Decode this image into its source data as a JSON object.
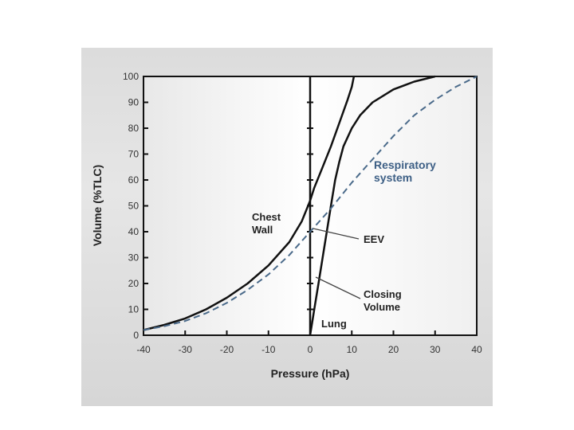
{
  "chart_data": {
    "type": "line",
    "xlabel": "Pressure (hPa)",
    "ylabel": "Volume (%TLC)",
    "xlim": [
      -40,
      40
    ],
    "ylim": [
      0,
      100
    ],
    "xticks": [
      -40,
      -30,
      -20,
      -10,
      0,
      10,
      20,
      30,
      40
    ],
    "yticks": [
      0,
      10,
      20,
      30,
      40,
      50,
      60,
      70,
      80,
      90,
      100
    ],
    "grid": false,
    "series": [
      {
        "name": "Chest Wall",
        "color": "#111111",
        "style": "solid",
        "points": [
          [
            -40,
            2
          ],
          [
            -35,
            4
          ],
          [
            -30,
            6.5
          ],
          [
            -25,
            10
          ],
          [
            -20,
            14.5
          ],
          [
            -15,
            20
          ],
          [
            -10,
            27
          ],
          [
            -5,
            36
          ],
          [
            -2,
            44
          ],
          [
            0,
            52
          ],
          [
            1,
            57
          ],
          [
            3,
            65
          ],
          [
            5,
            73
          ],
          [
            7,
            82
          ],
          [
            9,
            91
          ],
          [
            10,
            96
          ],
          [
            10.5,
            100
          ]
        ]
      },
      {
        "name": "Lung",
        "color": "#111111",
        "style": "solid",
        "points": [
          [
            0,
            0
          ],
          [
            1,
            10
          ],
          [
            2,
            20
          ],
          [
            3,
            30
          ],
          [
            4,
            40
          ],
          [
            5,
            50
          ],
          [
            6,
            60
          ],
          [
            7,
            67
          ],
          [
            8,
            73
          ],
          [
            10,
            80
          ],
          [
            12,
            85
          ],
          [
            15,
            90
          ],
          [
            20,
            95
          ],
          [
            25,
            98
          ],
          [
            30,
            100
          ]
        ]
      },
      {
        "name": "Respiratory system",
        "color": "#4a6a8a",
        "style": "dashed",
        "points": [
          [
            -40,
            2
          ],
          [
            -35,
            3.5
          ],
          [
            -30,
            5.5
          ],
          [
            -25,
            8.5
          ],
          [
            -20,
            12.5
          ],
          [
            -15,
            17.5
          ],
          [
            -10,
            23.5
          ],
          [
            -5,
            31
          ],
          [
            0,
            40
          ],
          [
            5,
            49
          ],
          [
            10,
            59
          ],
          [
            15,
            68
          ],
          [
            20,
            77
          ],
          [
            25,
            85
          ],
          [
            30,
            91
          ],
          [
            35,
            96
          ],
          [
            40,
            100
          ]
        ]
      }
    ],
    "annotations": {
      "chest_wall": "Chest\nWall",
      "respiratory": "Respiratory\nsystem",
      "eev": "EEV",
      "closing": "Closing\nVolume",
      "lung": "Lung"
    }
  }
}
